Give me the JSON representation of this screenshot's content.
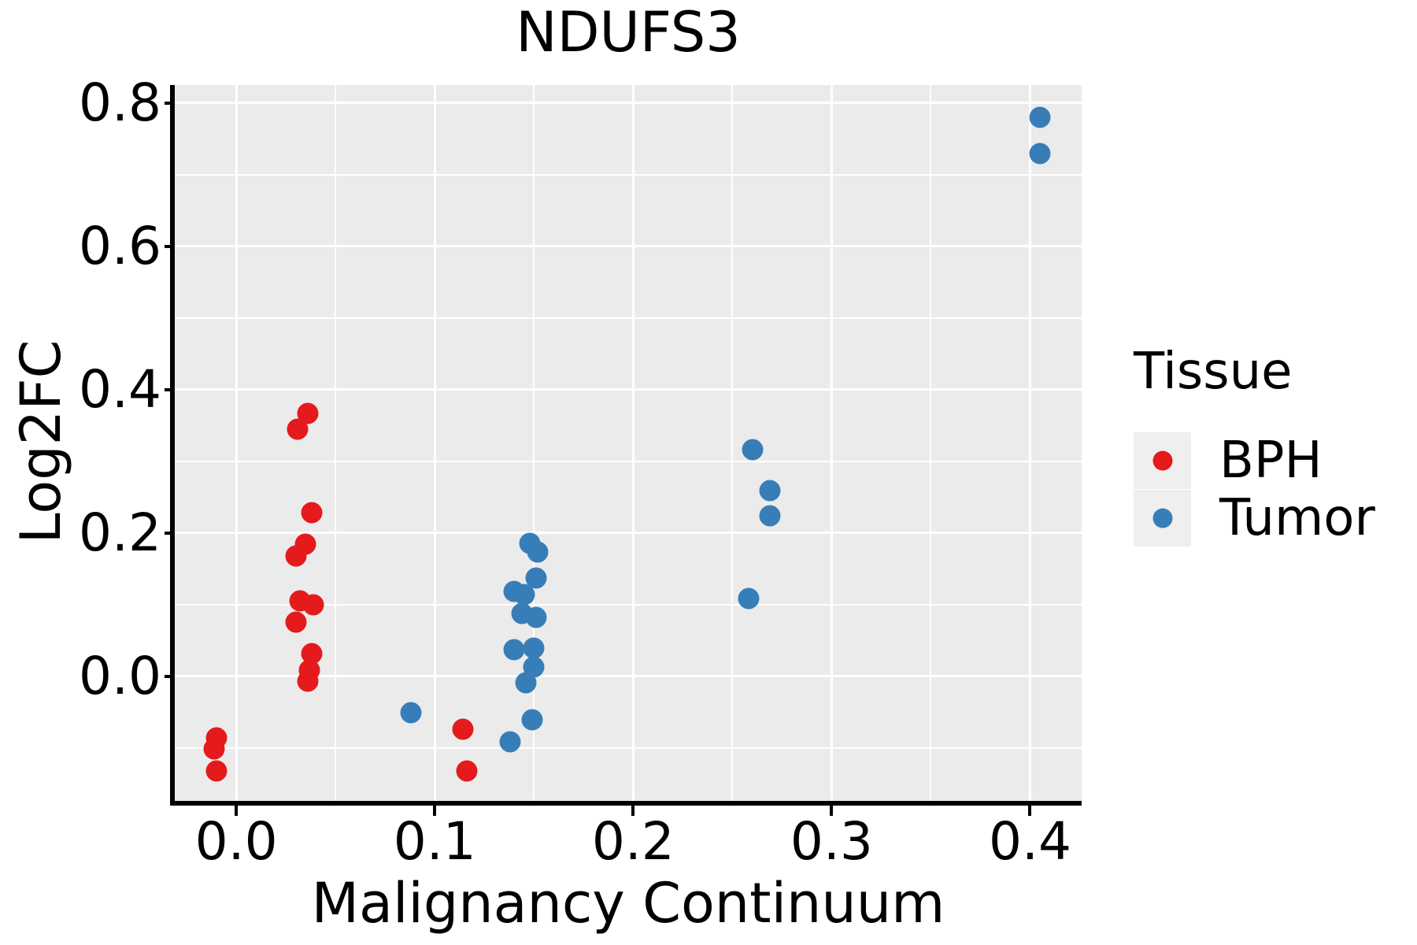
{
  "title": "NDUFS3",
  "x_axis": {
    "label": "Malignancy Continuum",
    "tick_labels": [
      "0.0",
      "0.1",
      "0.2",
      "0.3",
      "0.4"
    ],
    "tick_values": [
      0.0,
      0.1,
      0.2,
      0.3,
      0.4
    ],
    "minor_tick_values": [
      0.05,
      0.15,
      0.25,
      0.35
    ]
  },
  "y_axis": {
    "label": "Log2FC",
    "tick_labels": [
      "0.0",
      "0.2",
      "0.4",
      "0.6",
      "0.8"
    ],
    "tick_values": [
      0.0,
      0.2,
      0.4,
      0.6,
      0.8
    ],
    "minor_tick_values": [
      -0.1,
      0.1,
      0.3,
      0.5,
      0.7
    ]
  },
  "legend": {
    "title": "Tissue",
    "items": [
      {
        "label": "BPH",
        "color": "#e41a1c"
      },
      {
        "label": "Tumor",
        "color": "#377eb8"
      }
    ]
  },
  "colors": {
    "panel_background": "#ebebeb",
    "gridline": "#ffffff",
    "bph": "#e41a1c",
    "tumor": "#377eb8",
    "text": "#000000",
    "legend_key_background": "#efefef"
  },
  "chart_data": {
    "type": "scatter",
    "title": "NDUFS3",
    "xlabel": "Malignancy Continuum",
    "ylabel": "Log2FC",
    "xlim": [
      -0.031,
      0.426
    ],
    "ylim": [
      -0.177,
      0.825
    ],
    "grid": "on",
    "legend_position": "right",
    "legend_title": "Tissue",
    "series": [
      {
        "name": "BPH",
        "color": "#e41a1c",
        "points": [
          [
            -0.01,
            -0.086
          ],
          [
            -0.011,
            -0.101
          ],
          [
            -0.01,
            -0.132
          ],
          [
            0.036,
            0.367
          ],
          [
            0.031,
            0.345
          ],
          [
            0.038,
            0.228
          ],
          [
            0.035,
            0.184
          ],
          [
            0.03,
            0.168
          ],
          [
            0.032,
            0.105
          ],
          [
            0.039,
            0.1
          ],
          [
            0.03,
            0.076
          ],
          [
            0.038,
            0.032
          ],
          [
            0.037,
            0.009
          ],
          [
            0.036,
            -0.007
          ],
          [
            0.114,
            -0.074
          ],
          [
            0.116,
            -0.132
          ]
        ]
      },
      {
        "name": "Tumor",
        "color": "#377eb8",
        "points": [
          [
            0.088,
            -0.051
          ],
          [
            0.148,
            0.186
          ],
          [
            0.152,
            0.174
          ],
          [
            0.151,
            0.137
          ],
          [
            0.14,
            0.118
          ],
          [
            0.145,
            0.114
          ],
          [
            0.144,
            0.088
          ],
          [
            0.151,
            0.082
          ],
          [
            0.14,
            0.037
          ],
          [
            0.15,
            0.039
          ],
          [
            0.15,
            0.013
          ],
          [
            0.146,
            -0.009
          ],
          [
            0.149,
            -0.06
          ],
          [
            0.138,
            -0.091
          ],
          [
            0.26,
            0.316
          ],
          [
            0.269,
            0.259
          ],
          [
            0.269,
            0.224
          ],
          [
            0.258,
            0.109
          ],
          [
            0.405,
            0.78
          ],
          [
            0.405,
            0.729
          ]
        ]
      }
    ]
  }
}
